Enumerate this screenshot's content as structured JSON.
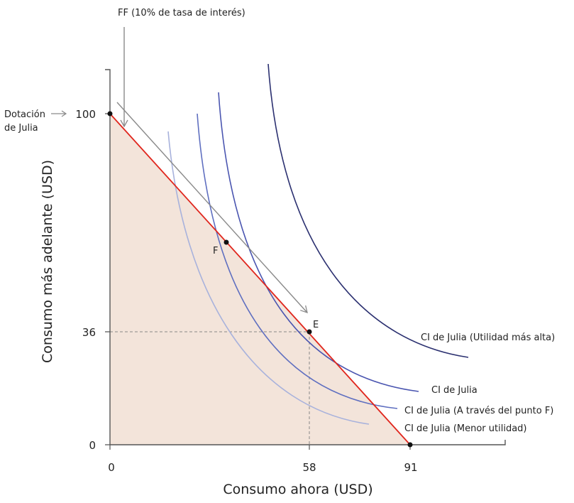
{
  "diagram": {
    "x_axis": {
      "label": "Consumo ahora (USD)",
      "ticks": [
        "0",
        "58",
        "91"
      ]
    },
    "y_axis": {
      "label": "Consumo más adelante (USD)",
      "ticks": [
        "0",
        "36",
        "100"
      ]
    },
    "annotations": {
      "ff_line": "FF (10% de tasa de interés)",
      "endowment_line1": "Dotación",
      "endowment_line2": "de Julia",
      "point_e": "E",
      "point_f": "F"
    },
    "curves": [
      {
        "label": "CI de Julia (Utilidad más alta)",
        "color": "#2b3070"
      },
      {
        "label": "CI de Julia",
        "color": "#4a55b0"
      },
      {
        "label": "CI de Julia (A través del punto F)",
        "color": "#5f6fc0"
      },
      {
        "label": "CI de Julia (Menor utilidad)",
        "color": "#a8b2dc"
      }
    ],
    "colors": {
      "budget_line": "#e0261d",
      "feasible_area": "#f3e4da",
      "ff_line": "#8a8a8a"
    }
  }
}
